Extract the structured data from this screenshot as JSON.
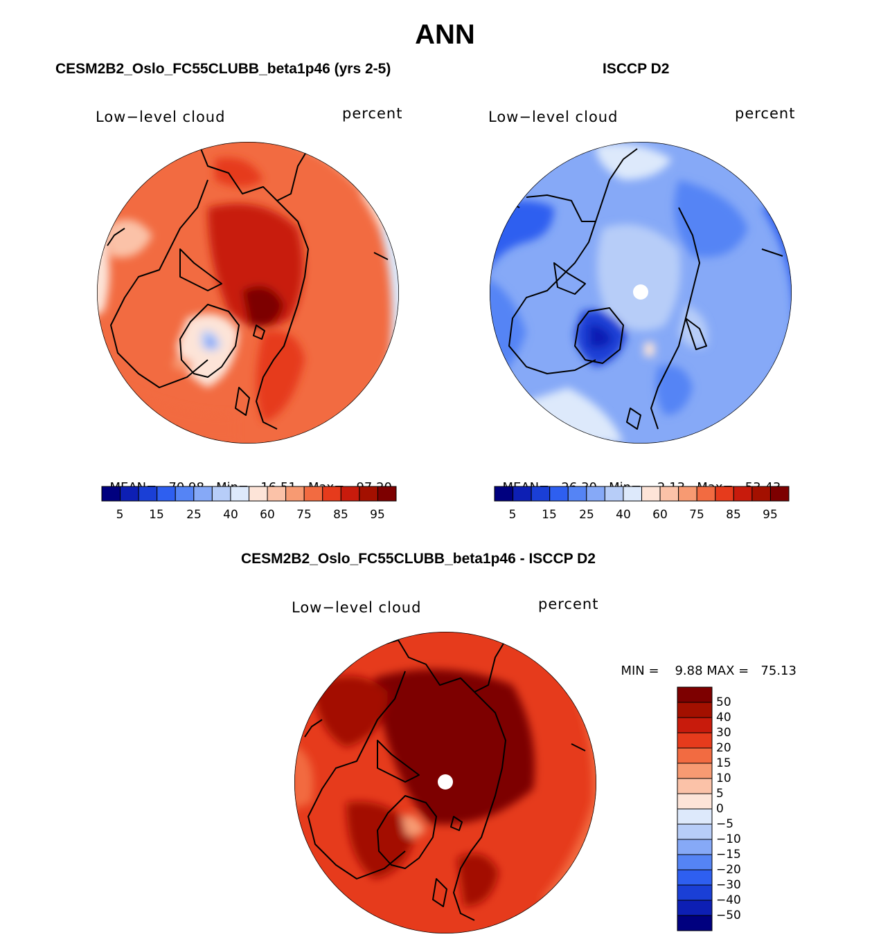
{
  "season": "ANN",
  "colors": {
    "test_scale": [
      "#00007f",
      "#0d1fb4",
      "#1a3fd6",
      "#2e5ff0",
      "#5584f5",
      "#86a9f7",
      "#b7cdf8",
      "#dde9fb",
      "#fde4d8",
      "#fbc2a8",
      "#f79a72",
      "#f26b41",
      "#e63b1c",
      "#c81b0c",
      "#a31000",
      "#7d0000"
    ],
    "diff_scale": [
      "#00007f",
      "#0d1fb4",
      "#1a3fd6",
      "#2e5ff0",
      "#5584f5",
      "#86a9f7",
      "#b7cdf8",
      "#dde9fb",
      "#fde4d8",
      "#fbc2a8",
      "#f79a72",
      "#f26b41",
      "#e63b1c",
      "#c81b0c",
      "#a31000",
      "#7d0000"
    ],
    "coast": "#000000"
  },
  "panels": {
    "test": {
      "title": "CESM2B2_Oslo_FC55CLUBB_beta1p46 (yrs 2-5)",
      "variable": "Low−level cloud",
      "units": "percent",
      "stats": {
        "mean_label": "MEAN=",
        "mean": "70.98",
        "min_label": "Min=",
        "min": "16.51",
        "max_label": "Max=",
        "max": "97.20"
      },
      "colorbar_ticks": [
        "5",
        "15",
        "25",
        "40",
        "60",
        "75",
        "85",
        "95"
      ]
    },
    "obs": {
      "title": "ISCCP D2",
      "variable": "Low−level cloud",
      "units": "percent",
      "stats": {
        "mean_label": "MEAN=",
        "mean": "26.30",
        "min_label": "Min=",
        "min": "2.13",
        "max_label": "Max=",
        "max": "53.43"
      },
      "colorbar_ticks": [
        "5",
        "15",
        "25",
        "40",
        "60",
        "75",
        "85",
        "95"
      ]
    },
    "diff": {
      "title": "CESM2B2_Oslo_FC55CLUBB_beta1p46 - ISCCP D2",
      "variable": "Low−level cloud",
      "units": "percent",
      "stats": {
        "min_label": "MIN =",
        "min": "9.88",
        "max_label": "MAX =",
        "max": "75.13"
      },
      "colorbar_ticks": [
        "50",
        "40",
        "30",
        "20",
        "15",
        "10",
        "5",
        "0",
        "−5",
        "−10",
        "−15",
        "−20",
        "−30",
        "−40",
        "−50"
      ]
    }
  }
}
